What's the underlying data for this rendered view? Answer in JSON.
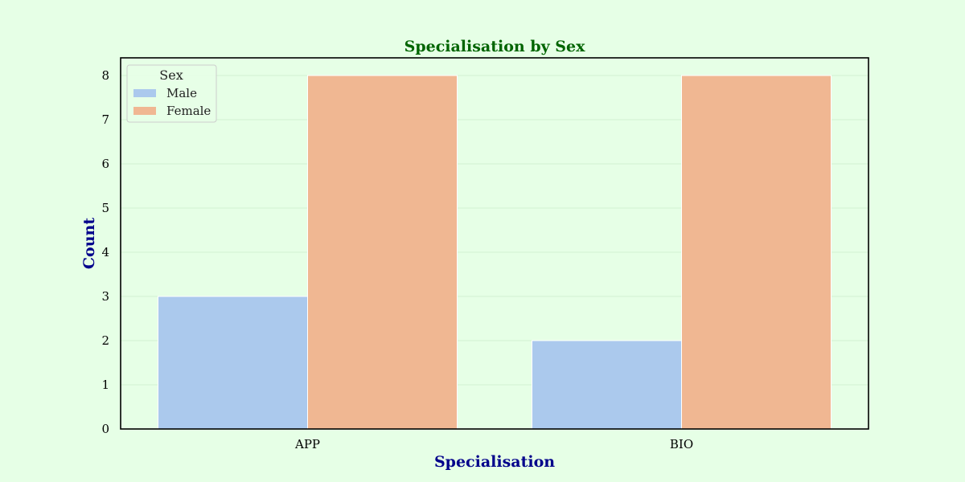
{
  "chart_data": {
    "type": "bar",
    "title": "Specialisation by Sex",
    "xlabel": "Specialisation",
    "ylabel": "Count",
    "categories": [
      "APP",
      "BIO"
    ],
    "series": [
      {
        "name": "Male",
        "values": [
          3,
          2
        ],
        "color": "#abc9ed"
      },
      {
        "name": "Female",
        "values": [
          8,
          8
        ],
        "color": "#f0b792"
      }
    ],
    "ylim": [
      0,
      8.4
    ],
    "yticks": [
      "0",
      "1",
      "2",
      "3",
      "4",
      "5",
      "6",
      "7",
      "8"
    ],
    "grid": true,
    "legend": {
      "title": "Sex",
      "position": "top-left"
    }
  },
  "colors": {
    "background": "#e6ffe6",
    "title": "#006400",
    "axis_titles": "#00008b",
    "axes_frame": "#000000"
  }
}
